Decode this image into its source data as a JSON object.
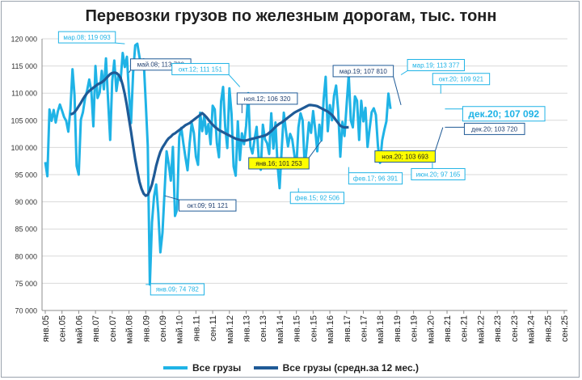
{
  "chart_data": {
    "type": "line",
    "title": "Перевозки грузов по железным дорогам, тыс. тонн",
    "ylim": [
      70000,
      120000
    ],
    "y_ticks": [
      "70 000",
      "75 000",
      "80 000",
      "85 000",
      "90 000",
      "95 000",
      "100 000",
      "105 000",
      "110 000",
      "115 000",
      "120 000"
    ],
    "x_tick_labels": [
      "янв.05",
      "сен.05",
      "май.06",
      "янв.07",
      "сен.07",
      "май.08",
      "янв.09",
      "сен.09",
      "май.10",
      "янв.11",
      "сен.11",
      "май.12",
      "янв.13",
      "сен.13",
      "май.14",
      "янв.15",
      "сен.15",
      "май.16",
      "янв.17",
      "сен.17",
      "май.18",
      "янв.19",
      "сен.19",
      "май.20",
      "янв.21",
      "сен.21",
      "май.22",
      "янв.23",
      "сен.23",
      "май.24",
      "янв.25",
      "сен.25"
    ],
    "x_range": [
      "янв.05",
      "сен.25"
    ],
    "grid": "horizontal",
    "legend_position": "bottom",
    "series": [
      {
        "name": "Все грузы",
        "color": "#1fb3e6",
        "start": "янв.05",
        "values": [
          97300,
          94700,
          107000,
          104900,
          106900,
          104600,
          106600,
          107900,
          106800,
          105600,
          104900,
          102900,
          107000,
          114400,
          109600,
          96600,
          95000,
          105100,
          106500,
          109000,
          110500,
          112500,
          110400,
          103900,
          115000,
          109100,
          110100,
          114100,
          110700,
          116400,
          108700,
          101400,
          112200,
          116000,
          110400,
          113200,
          112300,
          117400,
          114800,
          116700,
          110200,
          104500,
          113800,
          118800,
          119093,
          116700,
          114700,
          116200,
          108300,
          100300,
          74782,
          86200,
          91000,
          93200,
          88000,
          80700,
          84300,
          91900,
          99300,
          97000,
          93900,
          100100,
          87400,
          88600,
          101900,
          103600,
          100700,
          98200,
          95800,
          100800,
          104500,
          102700,
          98300,
          96800,
          106400,
          103000,
          105800,
          102500,
          104300,
          100600,
          107700,
          107000,
          100800,
          98200,
          108500,
          111151,
          103800,
          99900,
          110900,
          106300,
          96500,
          94800,
          104800,
          97700,
          102600,
          100600,
          104000,
          110000,
          100200,
          98900,
          101500,
          103800,
          98200,
          95900,
          104200,
          101500,
          100800,
          98800,
          106300,
          99800,
          104600,
          96900,
          92506,
          99700,
          106400,
          103100,
          100200,
          102500,
          101500,
          98700,
          96300,
          103700,
          106300,
          105000,
          96391,
          100200,
          104600,
          102700,
          106700,
          103400,
          99300,
          104200,
          101300,
          108700,
          113000,
          103000,
          107800,
          105000,
          109500,
          111400,
          106700,
          98300,
          104700,
          102100,
          107810,
          113377,
          105000,
          103700,
          109400,
          108600,
          101400,
          108600,
          104800,
          107300,
          100100,
          103500,
          106500,
          107200,
          106000,
          100200,
          97165,
          101300,
          103200,
          104800,
          109921,
          107092
        ]
      },
      {
        "name": "Все грузы (средн.за 12 мес.)",
        "color": "#1f5a96",
        "start": "янв.06",
        "values": [
          106100,
          106200,
          106500,
          107000,
          107600,
          108200,
          108900,
          109500,
          110000,
          110400,
          110700,
          111000,
          111300,
          111600,
          111800,
          112000,
          112300,
          112700,
          113100,
          113500,
          113700,
          113780,
          113700,
          113400,
          112800,
          111500,
          109800,
          107700,
          105300,
          102900,
          100300,
          97800,
          95700,
          93700,
          92400,
          91500,
          91121,
          91300,
          92100,
          93200,
          94800,
          96600,
          98000,
          99200,
          100000,
          100600,
          101200,
          101700,
          102000,
          102400,
          102600,
          102900,
          103200,
          103500,
          103800,
          104100,
          104300,
          104500,
          104800,
          105100,
          105400,
          105700,
          106000,
          106320,
          106000,
          105600,
          105100,
          104600,
          104200,
          103800,
          103500,
          103200,
          103000,
          102800,
          102600,
          102400,
          102200,
          102000,
          101800,
          101600,
          101500,
          101400,
          101300,
          101253,
          101300,
          101400,
          101500,
          101600,
          101700,
          101800,
          101900,
          102000,
          102100,
          102200,
          102400,
          102700,
          103000,
          103400,
          103800,
          104100,
          104400,
          104600,
          104900,
          105200,
          105500,
          105800,
          106100,
          106400,
          106600,
          106800,
          107000,
          107200,
          107400,
          107600,
          107800,
          107810,
          107750,
          107700,
          107600,
          107400,
          107200,
          107000,
          106800,
          106600,
          106300,
          106000,
          105500,
          105000,
          104500,
          104000,
          103800,
          103693,
          103700,
          103720
        ]
      }
    ],
    "annotations": [
      {
        "label": "мар.08; 119 093",
        "month": "мар.08",
        "value": 119093,
        "series": "Все грузы"
      },
      {
        "label": "май.08;  113 780",
        "month": "май.08",
        "value": 113780,
        "series": "Все грузы (средн.за 12 мес.)"
      },
      {
        "label": "янв.09; 74 782",
        "month": "янв.09",
        "value": 74782,
        "series": "Все грузы"
      },
      {
        "label": "окт.09;  91 121",
        "month": "окт.09",
        "value": 91121,
        "series": "Все грузы (средн.за 12 мес.)"
      },
      {
        "label": "окт.12; 111 151",
        "month": "окт.12",
        "value": 111151,
        "series": "Все грузы"
      },
      {
        "label": "ноя.12;  106 320",
        "month": "ноя.12",
        "value": 106320,
        "series": "Все грузы (средн.за 12 мес.)"
      },
      {
        "label": "янв.16;  101 253",
        "month": "янв.16",
        "value": 101253,
        "series": "Все грузы (средн.за 12 мес.)"
      },
      {
        "label": "фев.15; 92 506",
        "month": "фев.15",
        "value": 92506,
        "series": "Все грузы"
      },
      {
        "label": "фев.17; 96 391",
        "month": "фев.17",
        "value": 96391,
        "series": "Все грузы"
      },
      {
        "label": "мар.19;  107 810",
        "month": "мар.19",
        "value": 107810,
        "series": "Все грузы (средн.за 12 мес.)"
      },
      {
        "label": "мар.19; 113 377",
        "month": "мар.19",
        "value": 113377,
        "series": "Все грузы"
      },
      {
        "label": "ноя.20;  103 693",
        "month": "ноя.20",
        "value": 103693,
        "series": "Все грузы (средн.за 12 мес.)"
      },
      {
        "label": "окт.20; 109 921",
        "month": "окт.20",
        "value": 109921,
        "series": "Все грузы"
      },
      {
        "label": "дек.20; 107 092",
        "month": "дек.20",
        "value": 107092,
        "series": "Все грузы"
      },
      {
        "label": "дек.20;  103 720",
        "month": "дек.20",
        "value": 103720,
        "series": "Все грузы (средн.за 12 мес.)"
      },
      {
        "label": "июн.20; 97 165",
        "month": "июн.20",
        "value": 97165,
        "series": "Все грузы"
      }
    ]
  }
}
